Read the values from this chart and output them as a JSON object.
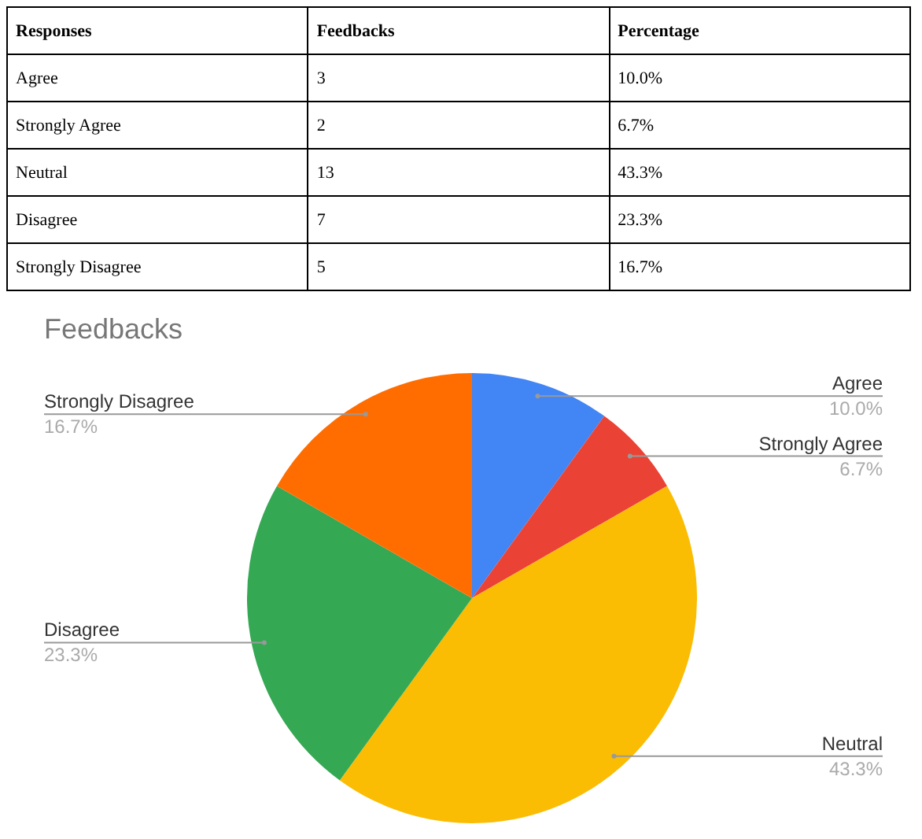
{
  "chart_data": {
    "type": "pie",
    "title": "Feedbacks",
    "annotations": [
      "Responses",
      "Feedbacks",
      "Percentage",
      "3",
      "2",
      "13",
      "7",
      "5"
    ],
    "categories": [
      "Agree",
      "Strongly Agree",
      "Neutral",
      "Disagree",
      "Strongly Disagree"
    ],
    "values": [
      10.0,
      6.7,
      43.3,
      23.3,
      16.7
    ],
    "value_labels": [
      "10.0%",
      "6.7%",
      "43.3%",
      "23.3%",
      "16.7%"
    ],
    "colors": [
      "#4285f4",
      "#ea4335",
      "#fbbc04",
      "#34a853",
      "#ff6d01"
    ],
    "legend": false
  }
}
